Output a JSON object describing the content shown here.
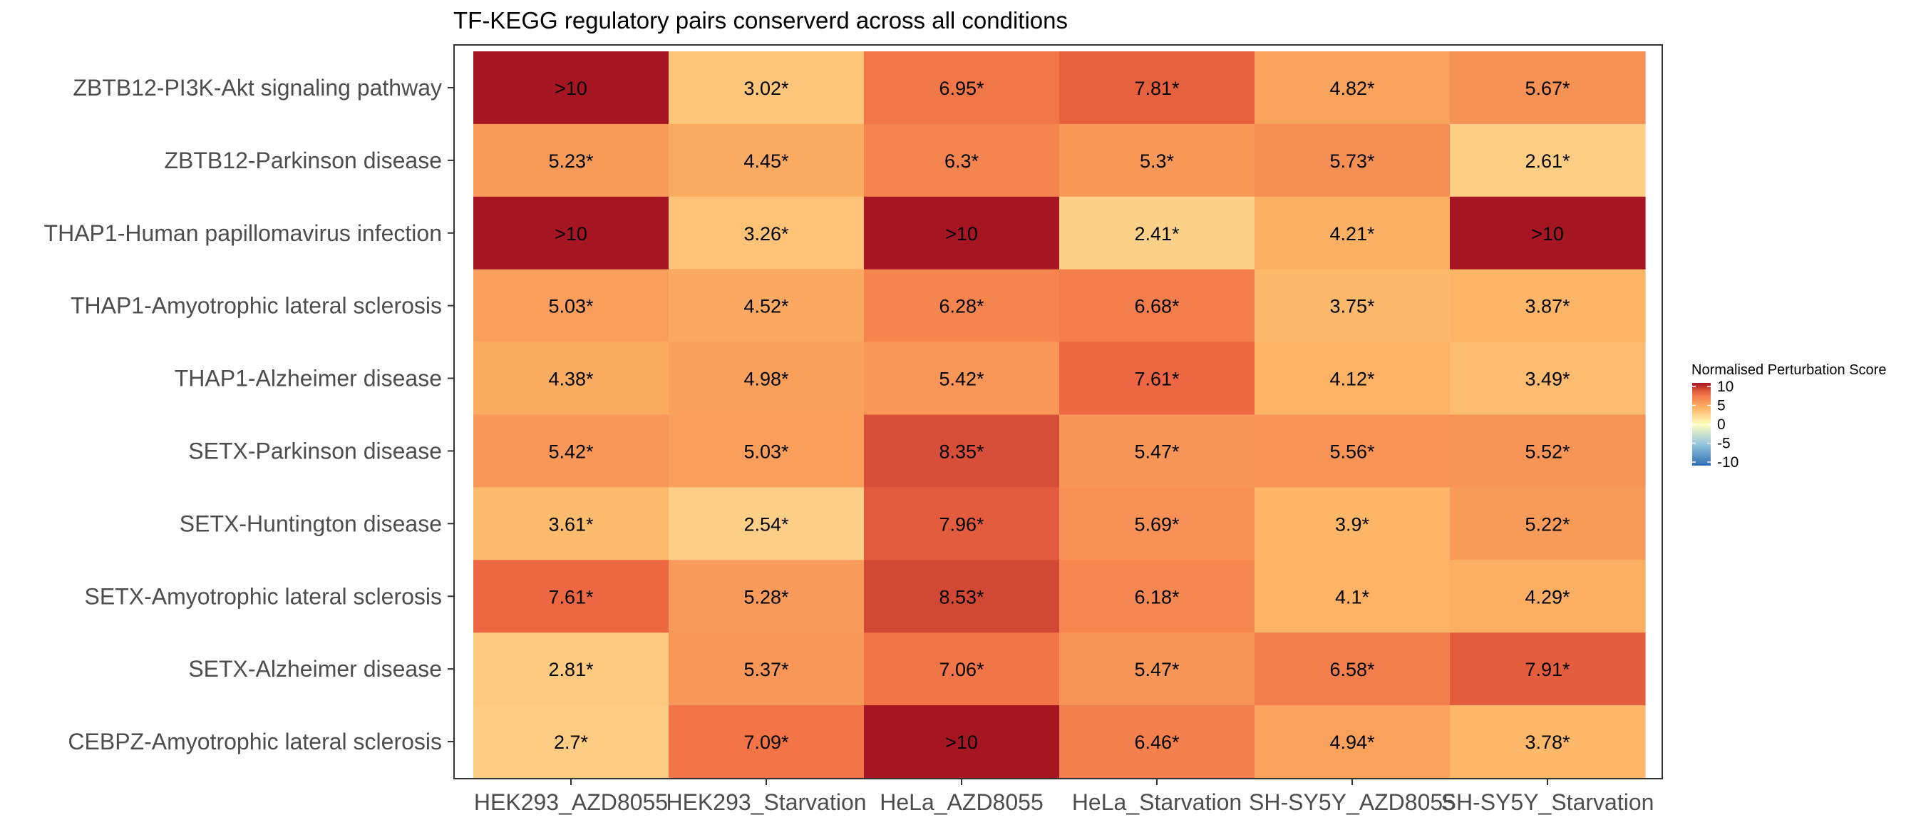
{
  "chart_data": {
    "type": "heatmap",
    "title": "TF-KEGG regulatory pairs conserverd across all conditions",
    "xlabel": "",
    "ylabel": "",
    "columns": [
      "HEK293_AZD8055",
      "HEK293_Starvation",
      "HeLa_AZD8055",
      "HeLa_Starvation",
      "SH-SY5Y_AZD8055",
      "SH-SY5Y_Starvation"
    ],
    "rows": [
      "ZBTB12-PI3K-Akt signaling pathway",
      "ZBTB12-Parkinson disease",
      "THAP1-Human papillomavirus infection",
      "THAP1-Amyotrophic lateral sclerosis",
      "THAP1-Alzheimer disease",
      "SETX-Parkinson disease",
      "SETX-Huntington disease",
      "SETX-Amyotrophic lateral sclerosis",
      "SETX-Alzheimer disease",
      "CEBPZ-Amyotrophic lateral sclerosis"
    ],
    "values": [
      [
        10,
        3.02,
        6.95,
        7.81,
        4.82,
        5.67
      ],
      [
        5.23,
        4.45,
        6.3,
        5.3,
        5.73,
        2.61
      ],
      [
        10,
        3.26,
        10,
        2.41,
        4.21,
        10
      ],
      [
        5.03,
        4.52,
        6.28,
        6.68,
        3.75,
        3.87
      ],
      [
        4.38,
        4.98,
        5.42,
        7.61,
        4.12,
        3.49
      ],
      [
        5.42,
        5.03,
        8.35,
        5.47,
        5.56,
        5.52
      ],
      [
        3.61,
        2.54,
        7.96,
        5.69,
        3.9,
        5.22
      ],
      [
        7.61,
        5.28,
        8.53,
        6.18,
        4.1,
        4.29
      ],
      [
        2.81,
        5.37,
        7.06,
        5.47,
        6.58,
        7.91
      ],
      [
        2.7,
        7.09,
        10,
        6.46,
        4.94,
        3.78
      ]
    ],
    "labels": [
      [
        ">10",
        "3.02*",
        "6.95*",
        "7.81*",
        "4.82*",
        "5.67*"
      ],
      [
        "5.23*",
        "4.45*",
        "6.3*",
        "5.3*",
        "5.73*",
        "2.61*"
      ],
      [
        ">10",
        "3.26*",
        ">10",
        "2.41*",
        "4.21*",
        ">10"
      ],
      [
        "5.03*",
        "4.52*",
        "6.28*",
        "6.68*",
        "3.75*",
        "3.87*"
      ],
      [
        "4.38*",
        "4.98*",
        "5.42*",
        "7.61*",
        "4.12*",
        "3.49*"
      ],
      [
        "5.42*",
        "5.03*",
        "8.35*",
        "5.47*",
        "5.56*",
        "5.52*"
      ],
      [
        "3.61*",
        "2.54*",
        "7.96*",
        "5.69*",
        "3.9*",
        "5.22*"
      ],
      [
        "7.61*",
        "5.28*",
        "8.53*",
        "6.18*",
        "4.1*",
        "4.29*"
      ],
      [
        "2.81*",
        "5.37*",
        "7.06*",
        "5.47*",
        "6.58*",
        "7.91*"
      ],
      [
        "2.7*",
        "7.09*",
        ">10",
        "6.46*",
        "4.94*",
        "3.78*"
      ]
    ],
    "legend": {
      "title": "Normalised Perturbation Score",
      "ticks": [
        10,
        5,
        0,
        -5,
        -10
      ],
      "tick_labels": [
        "10",
        "5",
        "0",
        "-5",
        "-10"
      ],
      "range": [
        -10,
        10
      ],
      "placement": "right"
    },
    "palette": {
      "stops": [
        "#2f6fb3",
        "#91c3de",
        "#fffebf",
        "#fdb465",
        "#f06c43",
        "#a51622"
      ],
      "stop_values": [
        -10,
        -5,
        0,
        4,
        7.5,
        10
      ]
    },
    "grid": false
  }
}
